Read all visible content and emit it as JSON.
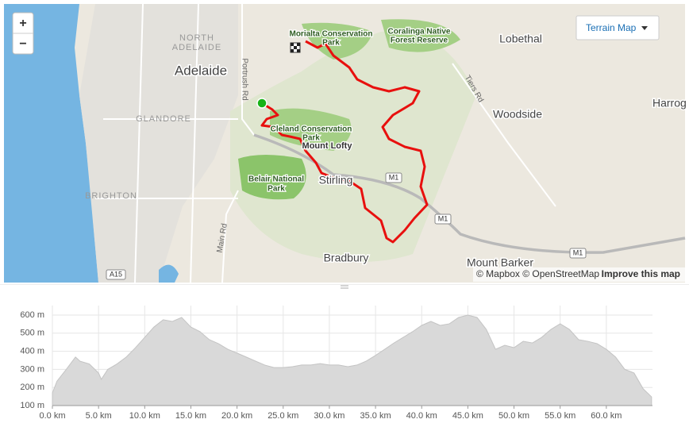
{
  "map": {
    "controls": {
      "zoom_in": "+",
      "zoom_out": "−",
      "layer": "Terrain Map"
    },
    "labels": [
      "Morialta Conservation",
      "Park",
      "Coralinga Native",
      "Forest Reserve",
      "NORTH",
      "ADELAIDE",
      "Adelaide",
      "Portrush Rd",
      "GLANDORE",
      "Cleland Conservation",
      "Park",
      "Mount Lofty",
      "Belair National",
      "Park",
      "Stirling",
      "Lobethal",
      "Woodside",
      "Harrog",
      "Tiers Rd",
      "Main Rd",
      "BRIGHTON",
      "Bradbury",
      "Mount Barker",
      "M1",
      "M1",
      "M1",
      "A15"
    ],
    "attribution": "© Mapbox © OpenStreetMap",
    "improve": "Improve this map"
  },
  "chart_data": {
    "type": "area",
    "color": "#d9d9d9",
    "grid": true,
    "x": [
      0,
      0.5,
      1.5,
      2.5,
      3,
      4,
      5,
      5.3,
      6,
      7,
      8,
      9,
      10,
      11,
      12,
      13,
      14,
      15,
      16,
      17,
      18,
      19,
      20,
      21,
      22,
      23,
      24,
      25,
      26,
      27,
      28,
      29,
      30,
      31,
      32,
      33,
      34,
      35,
      36,
      37,
      38,
      39,
      40,
      41,
      42,
      43,
      44,
      45,
      46,
      47,
      48,
      49,
      50,
      51,
      52,
      53,
      54,
      55,
      56,
      57,
      58,
      59,
      60,
      61,
      62,
      63,
      64,
      64.9
    ],
    "values": [
      170,
      235,
      300,
      368,
      345,
      330,
      280,
      245,
      300,
      330,
      368,
      420,
      477,
      534,
      574,
      565,
      587,
      534,
      508,
      464,
      442,
      411,
      390,
      368,
      346,
      324,
      310,
      310,
      315,
      324,
      324,
      332,
      324,
      324,
      315,
      324,
      346,
      377,
      411,
      446,
      477,
      508,
      543,
      565,
      543,
      552,
      587,
      600,
      587,
      521,
      411,
      433,
      420,
      455,
      446,
      477,
      521,
      552,
      521,
      464,
      455,
      442,
      411,
      368,
      300,
      280,
      192,
      148
    ],
    "xlim": [
      0,
      65
    ],
    "ylim": [
      100,
      600
    ],
    "xticks": [
      {
        "value": 0,
        "label": "0.0 km"
      },
      {
        "value": 5,
        "label": "5.0 km"
      },
      {
        "value": 10,
        "label": "10.0 km"
      },
      {
        "value": 15,
        "label": "15.0 km"
      },
      {
        "value": 20,
        "label": "20.0 km"
      },
      {
        "value": 25,
        "label": "25.0 km"
      },
      {
        "value": 30,
        "label": "30.0 km"
      },
      {
        "value": 35,
        "label": "35.0 km"
      },
      {
        "value": 40,
        "label": "40.0 km"
      },
      {
        "value": 45,
        "label": "45.0 km"
      },
      {
        "value": 50,
        "label": "50.0 km"
      },
      {
        "value": 55,
        "label": "55.0 km"
      },
      {
        "value": 60,
        "label": "60.0 km"
      }
    ],
    "yticks": [
      {
        "value": 100,
        "label": "100 m"
      },
      {
        "value": 200,
        "label": "200 m"
      },
      {
        "value": 300,
        "label": "300 m"
      },
      {
        "value": 400,
        "label": "400 m"
      },
      {
        "value": 500,
        "label": "500 m"
      },
      {
        "value": 600,
        "label": "600 m"
      }
    ]
  }
}
